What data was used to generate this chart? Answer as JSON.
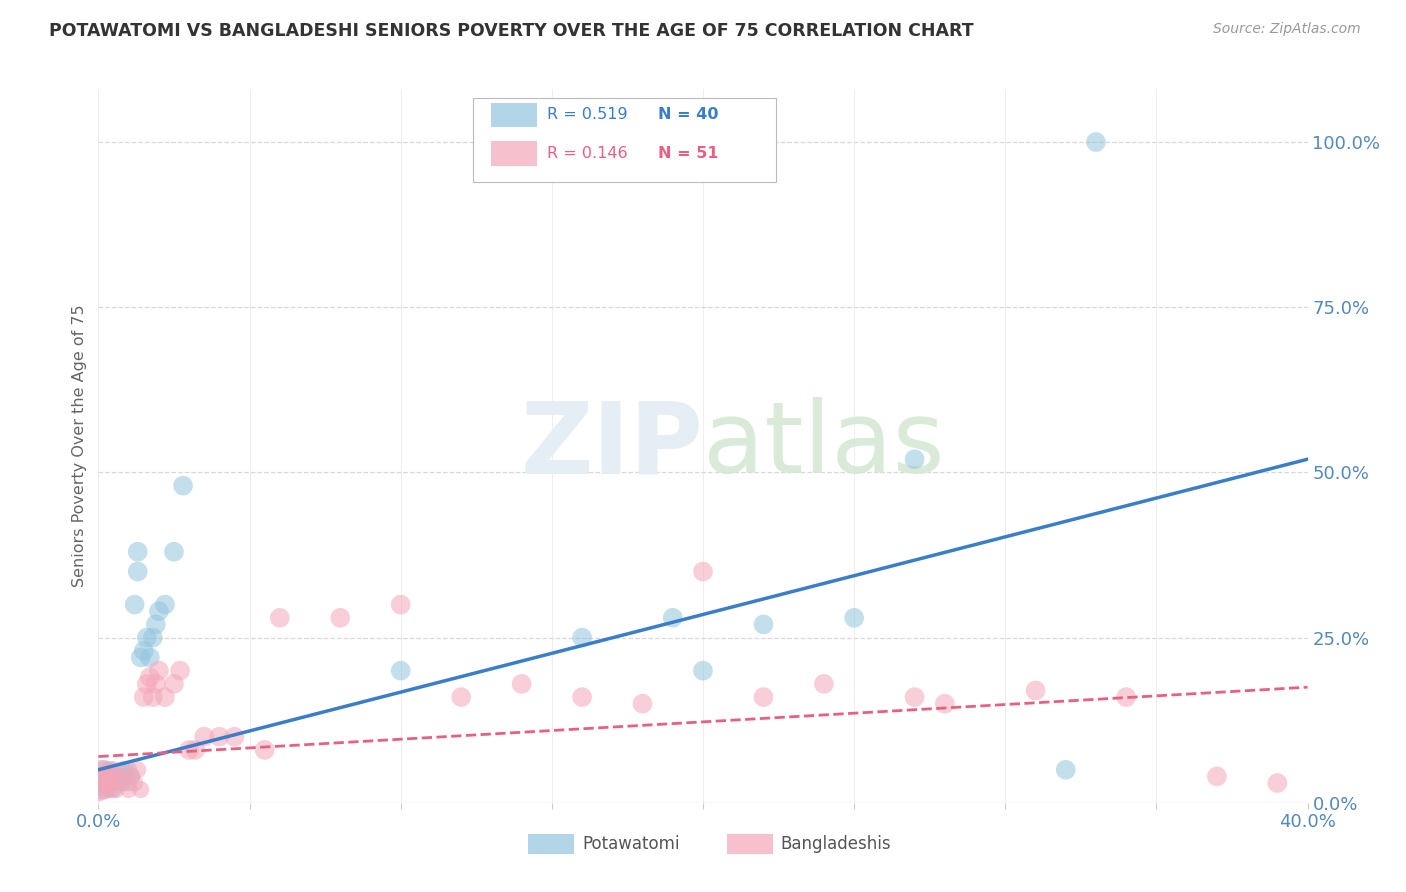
{
  "title": "POTAWATOMI VS BANGLADESHI SENIORS POVERTY OVER THE AGE OF 75 CORRELATION CHART",
  "source": "Source: ZipAtlas.com",
  "ylabel": "Seniors Poverty Over the Age of 75",
  "right_yticks": [
    0.0,
    0.25,
    0.5,
    0.75,
    1.0
  ],
  "right_yticklabels": [
    "0.0%",
    "25.0%",
    "50.0%",
    "75.0%",
    "100.0%"
  ],
  "watermark": "ZIPatlas",
  "legend_blue_r": "R = 0.519",
  "legend_blue_n": "N = 40",
  "legend_pink_r": "R = 0.146",
  "legend_pink_n": "N = 51",
  "legend_label_blue": "Potawatomi",
  "legend_label_pink": "Bangladeshis",
  "blue_color": "#92c5de",
  "pink_color": "#f4a6b8",
  "blue_line_color": "#3a7dc9",
  "pink_line_color": "#e86080",
  "potawatomi_x": [
    0.0,
    0.001,
    0.001,
    0.002,
    0.002,
    0.003,
    0.003,
    0.004,
    0.004,
    0.005,
    0.005,
    0.006,
    0.007,
    0.008,
    0.009,
    0.01,
    0.01,
    0.011,
    0.012,
    0.013,
    0.013,
    0.014,
    0.015,
    0.016,
    0.017,
    0.018,
    0.019,
    0.02,
    0.022,
    0.025,
    0.028,
    0.1,
    0.16,
    0.19,
    0.2,
    0.22,
    0.25,
    0.27,
    0.32,
    0.33
  ],
  "potawatomi_y": [
    0.03,
    0.02,
    0.04,
    0.03,
    0.05,
    0.02,
    0.04,
    0.03,
    0.05,
    0.02,
    0.03,
    0.04,
    0.03,
    0.05,
    0.04,
    0.03,
    0.05,
    0.04,
    0.3,
    0.35,
    0.38,
    0.22,
    0.23,
    0.25,
    0.22,
    0.25,
    0.27,
    0.29,
    0.3,
    0.38,
    0.48,
    0.2,
    0.25,
    0.28,
    0.2,
    0.27,
    0.28,
    0.52,
    0.05,
    1.0
  ],
  "potawatomi_sizes": [
    300,
    200,
    200,
    200,
    200,
    150,
    150,
    150,
    150,
    150,
    150,
    150,
    150,
    150,
    150,
    150,
    150,
    150,
    200,
    200,
    200,
    200,
    200,
    200,
    200,
    200,
    200,
    200,
    200,
    200,
    200,
    200,
    200,
    200,
    200,
    200,
    200,
    200,
    200,
    200
  ],
  "bangladeshi_x": [
    0.0,
    0.001,
    0.001,
    0.002,
    0.002,
    0.003,
    0.003,
    0.004,
    0.004,
    0.005,
    0.005,
    0.006,
    0.007,
    0.008,
    0.009,
    0.01,
    0.011,
    0.012,
    0.013,
    0.014,
    0.015,
    0.016,
    0.017,
    0.018,
    0.019,
    0.02,
    0.022,
    0.025,
    0.027,
    0.03,
    0.032,
    0.035,
    0.04,
    0.045,
    0.055,
    0.06,
    0.08,
    0.1,
    0.12,
    0.14,
    0.16,
    0.18,
    0.2,
    0.22,
    0.24,
    0.27,
    0.28,
    0.31,
    0.34,
    0.37,
    0.39
  ],
  "bangladeshi_y": [
    0.02,
    0.03,
    0.05,
    0.02,
    0.04,
    0.03,
    0.05,
    0.02,
    0.04,
    0.03,
    0.05,
    0.02,
    0.04,
    0.03,
    0.05,
    0.02,
    0.04,
    0.03,
    0.05,
    0.02,
    0.16,
    0.18,
    0.19,
    0.16,
    0.18,
    0.2,
    0.16,
    0.18,
    0.2,
    0.08,
    0.08,
    0.1,
    0.1,
    0.1,
    0.08,
    0.28,
    0.28,
    0.3,
    0.16,
    0.18,
    0.16,
    0.15,
    0.35,
    0.16,
    0.18,
    0.16,
    0.15,
    0.17,
    0.16,
    0.04,
    0.03
  ],
  "bangladeshi_sizes": [
    300,
    200,
    200,
    200,
    200,
    150,
    150,
    150,
    150,
    150,
    150,
    150,
    150,
    150,
    150,
    150,
    150,
    150,
    150,
    150,
    200,
    200,
    200,
    200,
    200,
    200,
    200,
    200,
    200,
    200,
    200,
    200,
    200,
    200,
    200,
    200,
    200,
    200,
    200,
    200,
    200,
    200,
    200,
    200,
    200,
    200,
    200,
    200,
    200,
    200,
    200
  ],
  "xmin": 0.0,
  "xmax": 0.4,
  "ymin": 0.0,
  "ymax": 1.08,
  "grid_color": "#d8d8d8",
  "background_color": "#ffffff"
}
